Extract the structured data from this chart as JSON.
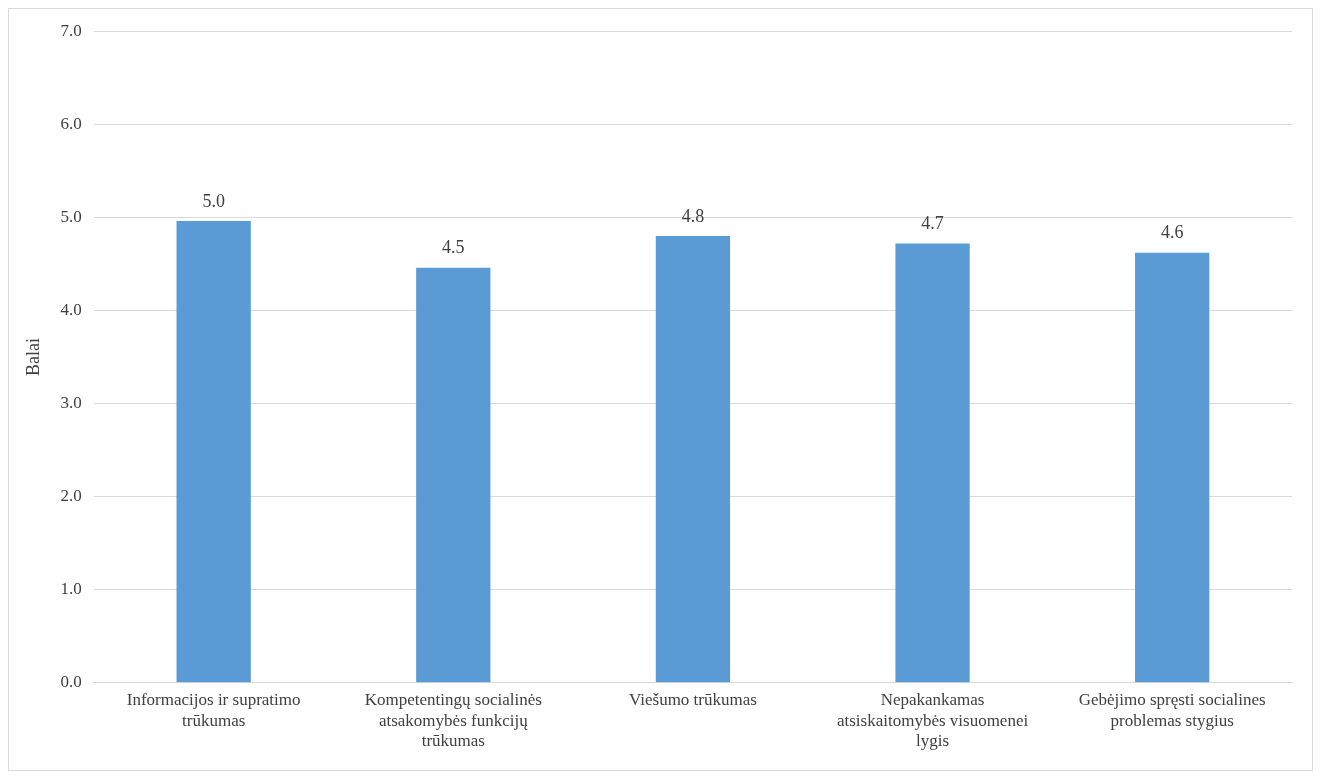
{
  "chart_data": {
    "type": "bar",
    "ylabel": "Balai",
    "categories": [
      "Informacijos ir supratimo trūkumas",
      "Kompetentingų socialinės atsakomybės funkcijų trūkumas",
      "Viešumo trūkumas",
      "Nepakankamas atsiskaitomybės visuomenei lygis",
      "Gebėjimo spręsti socialines problemas stygius"
    ],
    "values": [
      4.96,
      4.46,
      4.8,
      4.72,
      4.62
    ],
    "value_labels": [
      "5.0",
      "4.5",
      "4.8",
      "4.7",
      "4.6"
    ],
    "color": "#5b9bd5",
    "ylim": [
      0,
      7
    ],
    "yticks": [
      {
        "value": 0,
        "label": "0.0"
      },
      {
        "value": 1,
        "label": "1.0"
      },
      {
        "value": 2,
        "label": "2.0"
      },
      {
        "value": 3,
        "label": "3.0"
      },
      {
        "value": 4,
        "label": "4.0"
      },
      {
        "value": 5,
        "label": "5.0"
      },
      {
        "value": 6,
        "label": "6.0"
      },
      {
        "value": 7,
        "label": "7.0"
      }
    ],
    "grid": "y",
    "legend": false
  }
}
